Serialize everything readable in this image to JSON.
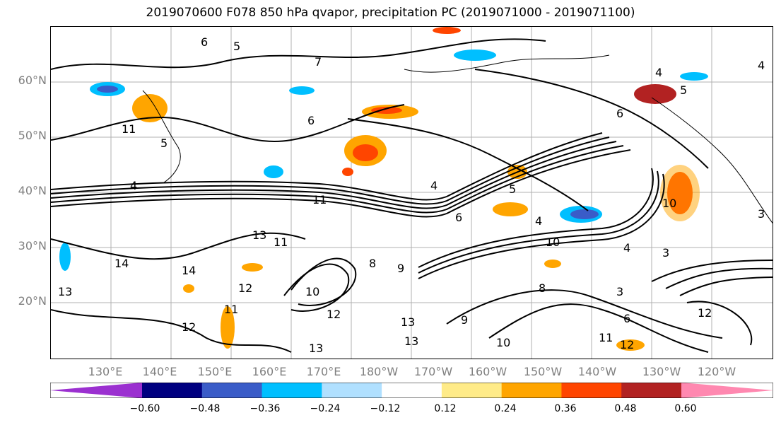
{
  "title": "2019070600 F078 850 hPa qvapor, precipitation PC (2019071000 - 2019071100)",
  "lat_labels": [
    "60°N",
    "50°N",
    "40°N",
    "30°N",
    "20°N"
  ],
  "lon_labels": [
    "130°E",
    "140°E",
    "150°E",
    "160°E",
    "170°E",
    "180°W",
    "170°W",
    "160°W",
    "150°W",
    "140°W",
    "130°W",
    "120°W"
  ],
  "contour_labels": [
    "6",
    "5",
    "7",
    "4",
    "6",
    "11",
    "5",
    "4",
    "4",
    "11",
    "13",
    "11",
    "14",
    "14",
    "12",
    "11",
    "12",
    "13",
    "10",
    "12",
    "13",
    "8",
    "9",
    "6",
    "5",
    "4",
    "10",
    "4",
    "3",
    "3",
    "6",
    "12",
    "11",
    "12",
    "13",
    "10",
    "9",
    "13",
    "8",
    "10",
    "4",
    "5",
    "6",
    "3"
  ],
  "colorbar": {
    "colors": [
      "#9b30d0",
      "#000080",
      "#3a5cc8",
      "#00bfff",
      "#b0e0ff",
      "#ffffff",
      "#ffeb88",
      "#ffa500",
      "#ff4500",
      "#b22222",
      "#ff88b0"
    ],
    "ticks": [
      "−0.60",
      "−0.48",
      "−0.36",
      "−0.24",
      "−0.12",
      "0.12",
      "0.24",
      "0.36",
      "0.48",
      "0.60"
    ]
  }
}
